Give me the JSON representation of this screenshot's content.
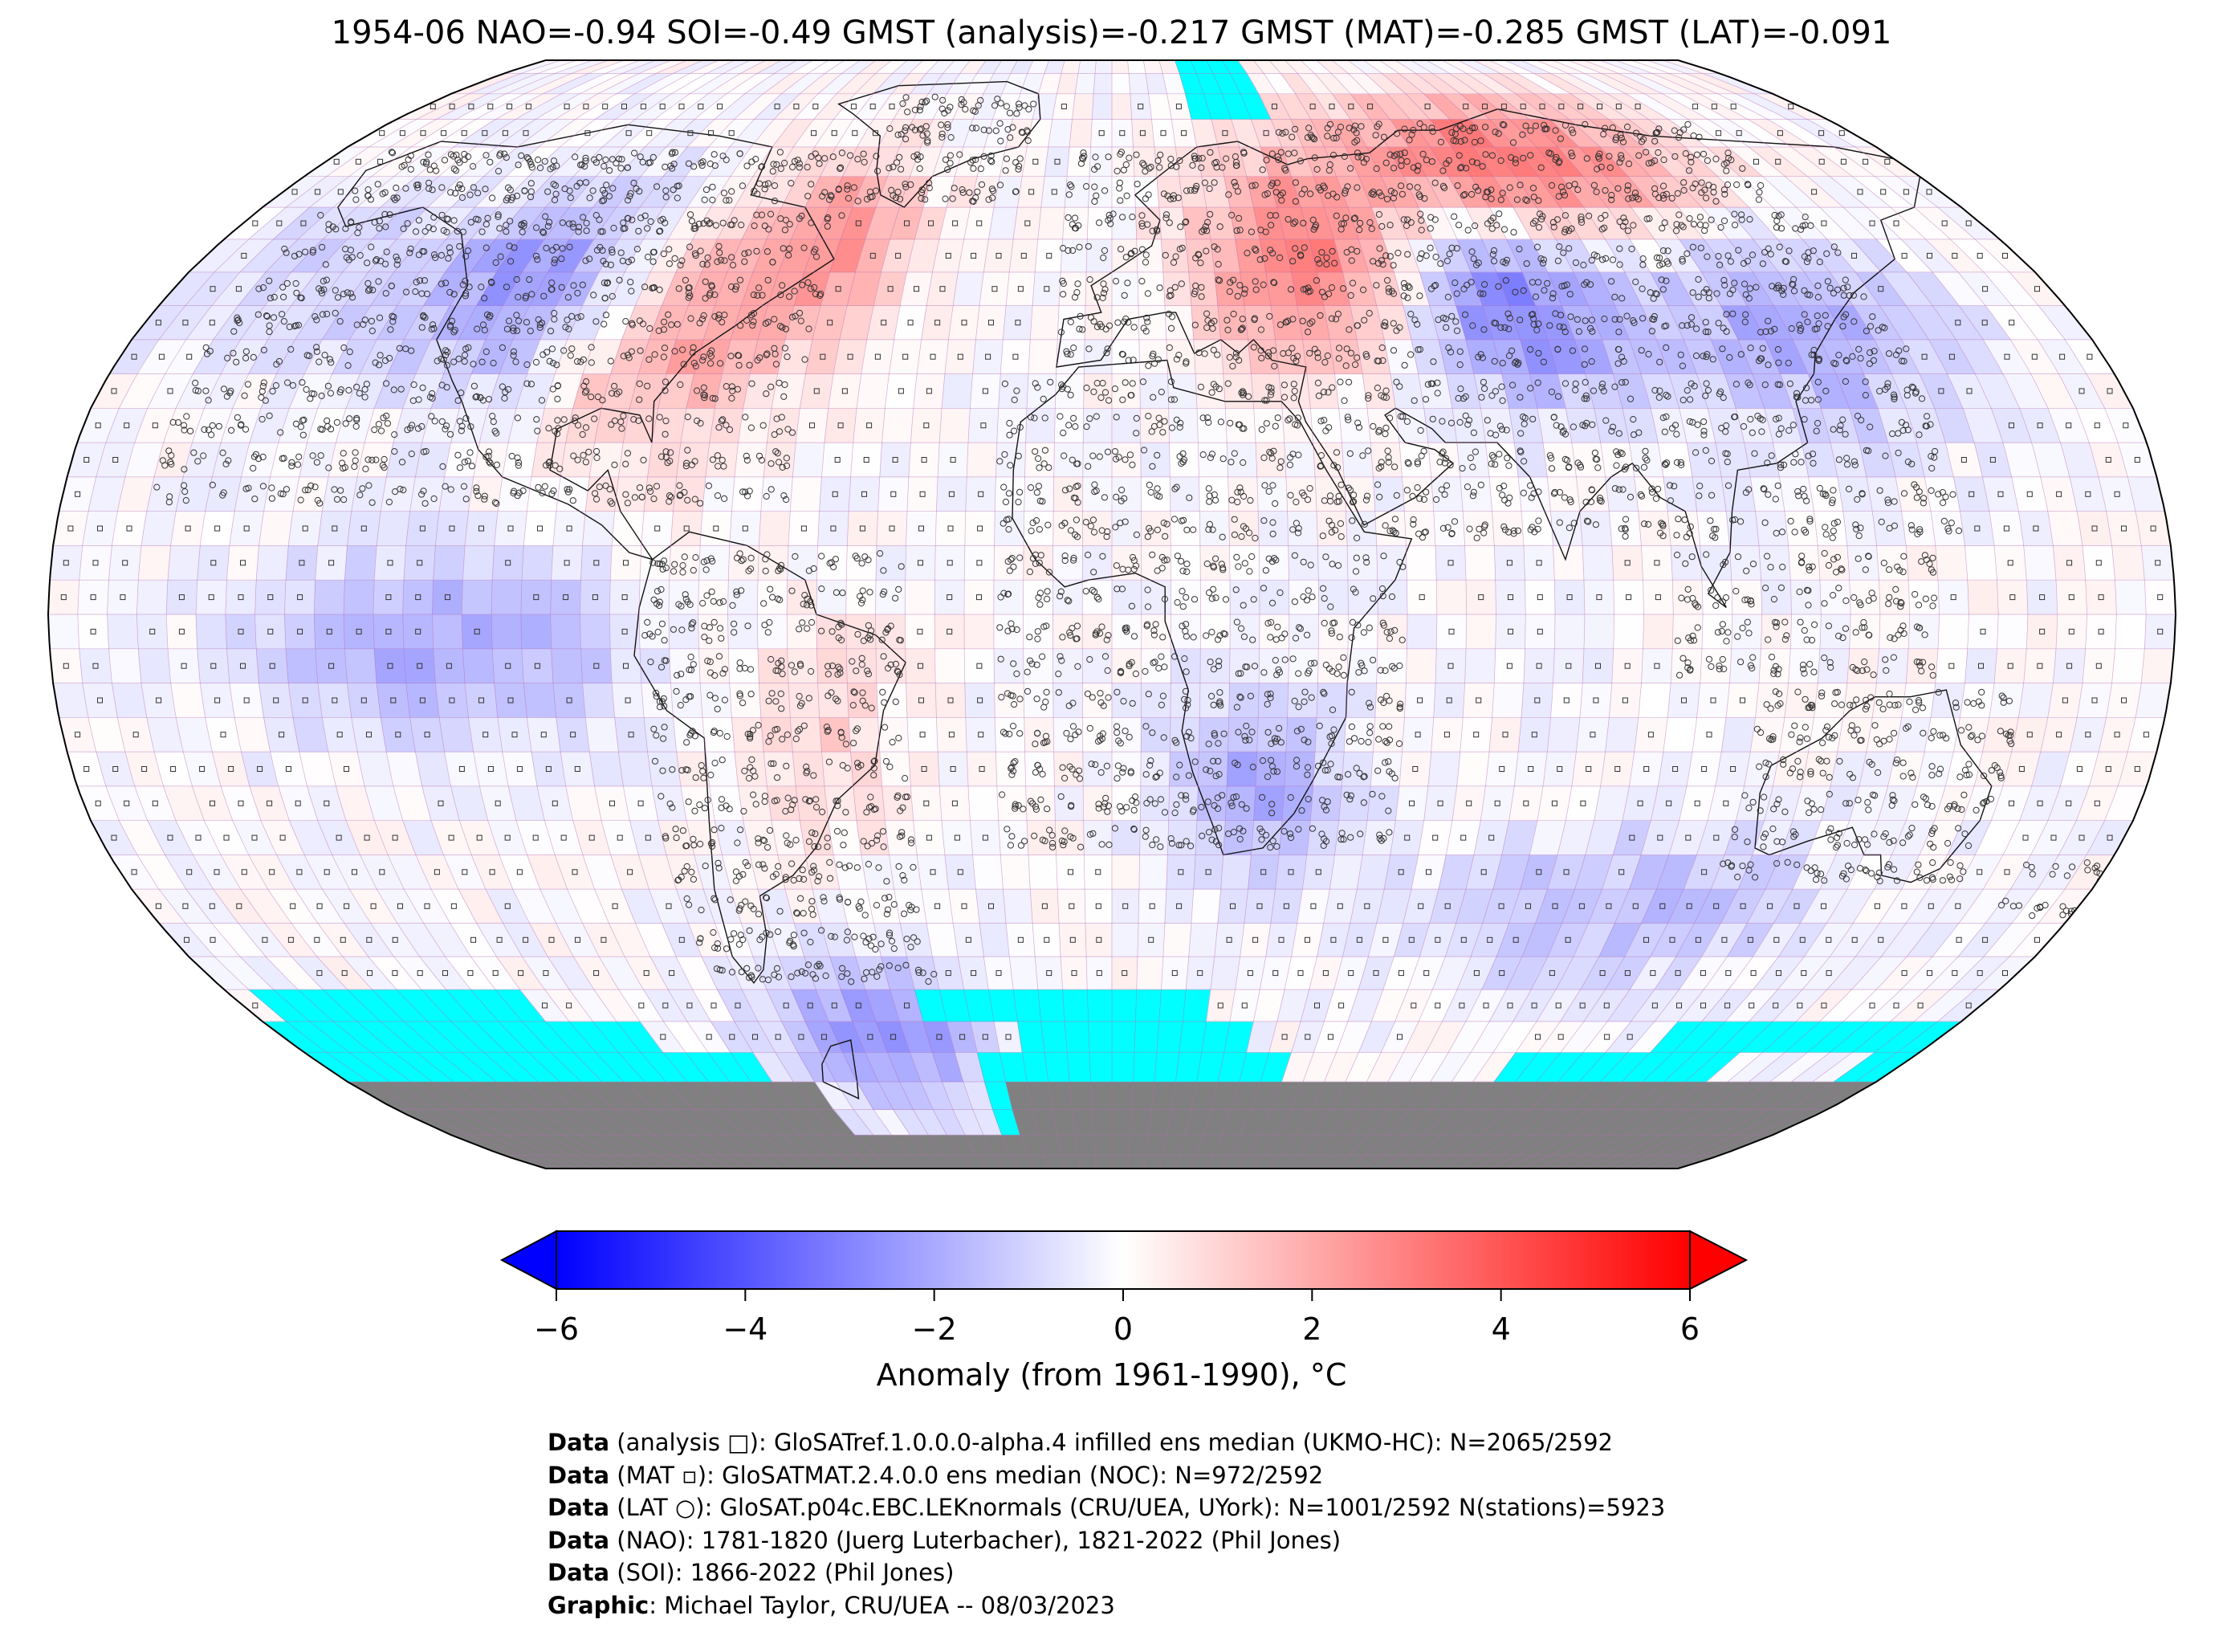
{
  "header": {
    "title": "1954-06 NAO=-0.94 SOI=-0.49 GMST (analysis)=-0.217 GMST (MAT)=-0.285 GMST (LAT)=-0.091"
  },
  "map": {
    "projection": "Robinson",
    "grid_resolution_deg": 5,
    "missing_data_color": "#00ffff",
    "land_mask_color": "#808080",
    "grid_line_color": "#b36cb3",
    "anomaly_regions": [
      {
        "region": "western-north-america",
        "lon": [
          -125,
          -95
        ],
        "lat": [
          35,
          60
        ],
        "value": -2.5
      },
      {
        "region": "eastern-north-america",
        "lon": [
          -100,
          -65
        ],
        "lat": [
          25,
          50
        ],
        "value": 2.0
      },
      {
        "region": "labrador-sea",
        "lon": [
          -70,
          -45
        ],
        "lat": [
          45,
          65
        ],
        "value": 2.5
      },
      {
        "region": "eastern-europe",
        "lon": [
          20,
          55
        ],
        "lat": [
          40,
          62
        ],
        "value": 3.0
      },
      {
        "region": "northern-siberia",
        "lon": [
          50,
          130
        ],
        "lat": [
          60,
          75
        ],
        "value": 3.5
      },
      {
        "region": "central-asia",
        "lon": [
          60,
          90
        ],
        "lat": [
          35,
          55
        ],
        "value": -3.0
      },
      {
        "region": "east-asia",
        "lon": [
          105,
          150
        ],
        "lat": [
          30,
          55
        ],
        "value": -2.0
      },
      {
        "region": "equatorial-east-pacific",
        "lon": [
          -140,
          -85
        ],
        "lat": [
          -15,
          5
        ],
        "value": -2.0
      },
      {
        "region": "southern-ocean-indian",
        "lon": [
          60,
          130
        ],
        "lat": [
          -50,
          -35
        ],
        "value": -1.5
      },
      {
        "region": "antarctic-peninsula",
        "lon": [
          -70,
          -30
        ],
        "lat": [
          -70,
          -55
        ],
        "value": -2.5
      },
      {
        "region": "southern-africa",
        "lon": [
          15,
          35
        ],
        "lat": [
          -35,
          -15
        ],
        "value": -2.0
      },
      {
        "region": "north-pacific",
        "lon": [
          -180,
          -130
        ],
        "lat": [
          40,
          60
        ],
        "value": -1.0
      },
      {
        "region": "south-america",
        "lon": [
          -60,
          -40
        ],
        "lat": [
          -30,
          -5
        ],
        "value": 1.0
      }
    ]
  },
  "colorbar": {
    "colormap": "bwr",
    "vmin": -6,
    "vmax": 6,
    "extend": "both",
    "ticks": [
      "−6",
      "−4",
      "−2",
      "0",
      "2",
      "4",
      "6"
    ],
    "label": "Anomaly (from 1961-1990), °C"
  },
  "credits": [
    {
      "key": "Data",
      "text": " (analysis □): GloSATref.1.0.0.0-alpha.4 infilled ens median (UKMO-HC): N=2065/2592"
    },
    {
      "key": "Data",
      "text": " (MAT ▫): GloSATMAT.2.4.0.0 ens median (NOC): N=972/2592"
    },
    {
      "key": "Data",
      "text": " (LAT ○): GloSAT.p04c.EBC.LEKnormals (CRU/UEA, UYork): N=1001/2592 N(stations)=5923"
    },
    {
      "key": "Data",
      "text": " (NAO): 1781-1820 (Juerg Luterbacher), 1821-2022 (Phil Jones)"
    },
    {
      "key": "Data",
      "text": " (SOI): 1866-2022 (Phil Jones)"
    },
    {
      "key": "Graphic",
      "text": ": Michael Taylor, CRU/UEA -- 08/03/2023"
    }
  ]
}
